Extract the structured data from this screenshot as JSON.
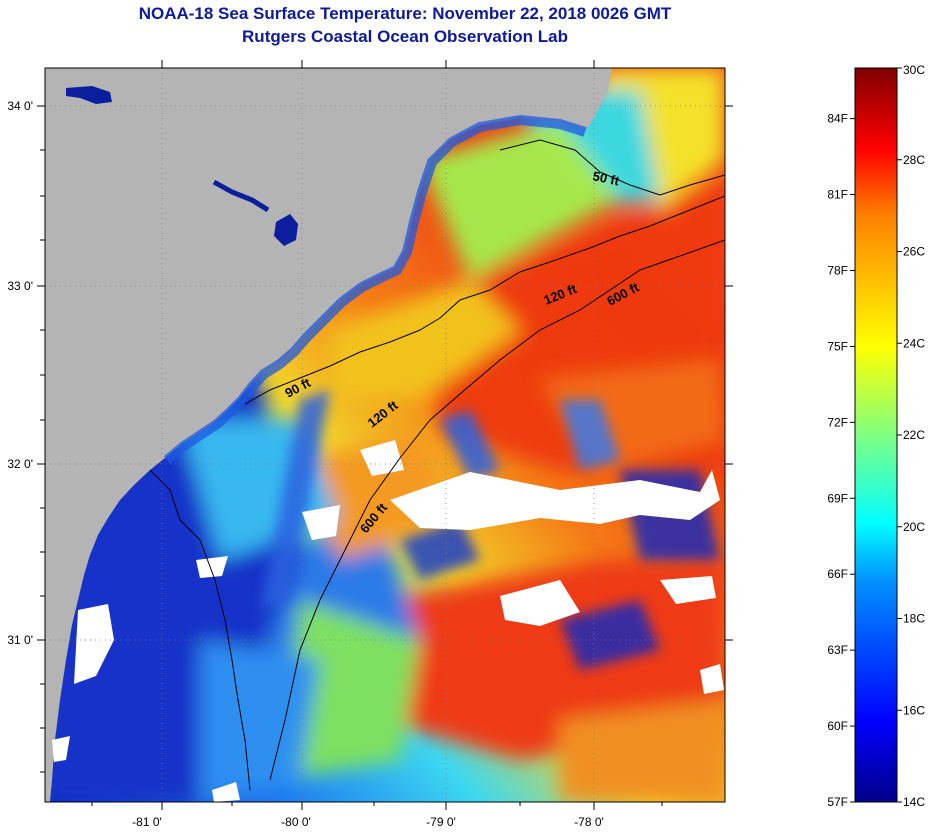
{
  "header": {
    "title": "NOAA-18 Sea Surface Temperature:  November 22, 2018 0026 GMT",
    "subtitle": "Rutgers Coastal Ocean Observation Lab"
  },
  "map": {
    "lat_ticks": [
      "34 0'",
      "33 0'",
      "32 0'",
      "31 0'"
    ],
    "lon_ticks": [
      "-81 0'",
      "-80 0'",
      "-79 0'",
      "-78 0'"
    ],
    "contours": [
      {
        "label": "50 ft"
      },
      {
        "label": "90 ft"
      },
      {
        "label": "120 ft"
      },
      {
        "label": "120 ft"
      },
      {
        "label": "600 ft"
      },
      {
        "label": "600 ft"
      }
    ],
    "colors": {
      "land": "#b4b4b4",
      "cloud": "#ffffff",
      "cold": "#0a1e9e",
      "warm": "#ee3a12"
    }
  },
  "colorbar": {
    "celsius_labels": [
      "30C",
      "28C",
      "26C",
      "24C",
      "22C",
      "20C",
      "18C",
      "16C",
      "14C"
    ],
    "fahrenheit_labels": [
      "84F",
      "81F",
      "78F",
      "75F",
      "72F",
      "69F",
      "66F",
      "63F",
      "60F",
      "57F"
    ],
    "range_c": [
      14,
      30
    ],
    "range_f": [
      57,
      86
    ]
  }
}
